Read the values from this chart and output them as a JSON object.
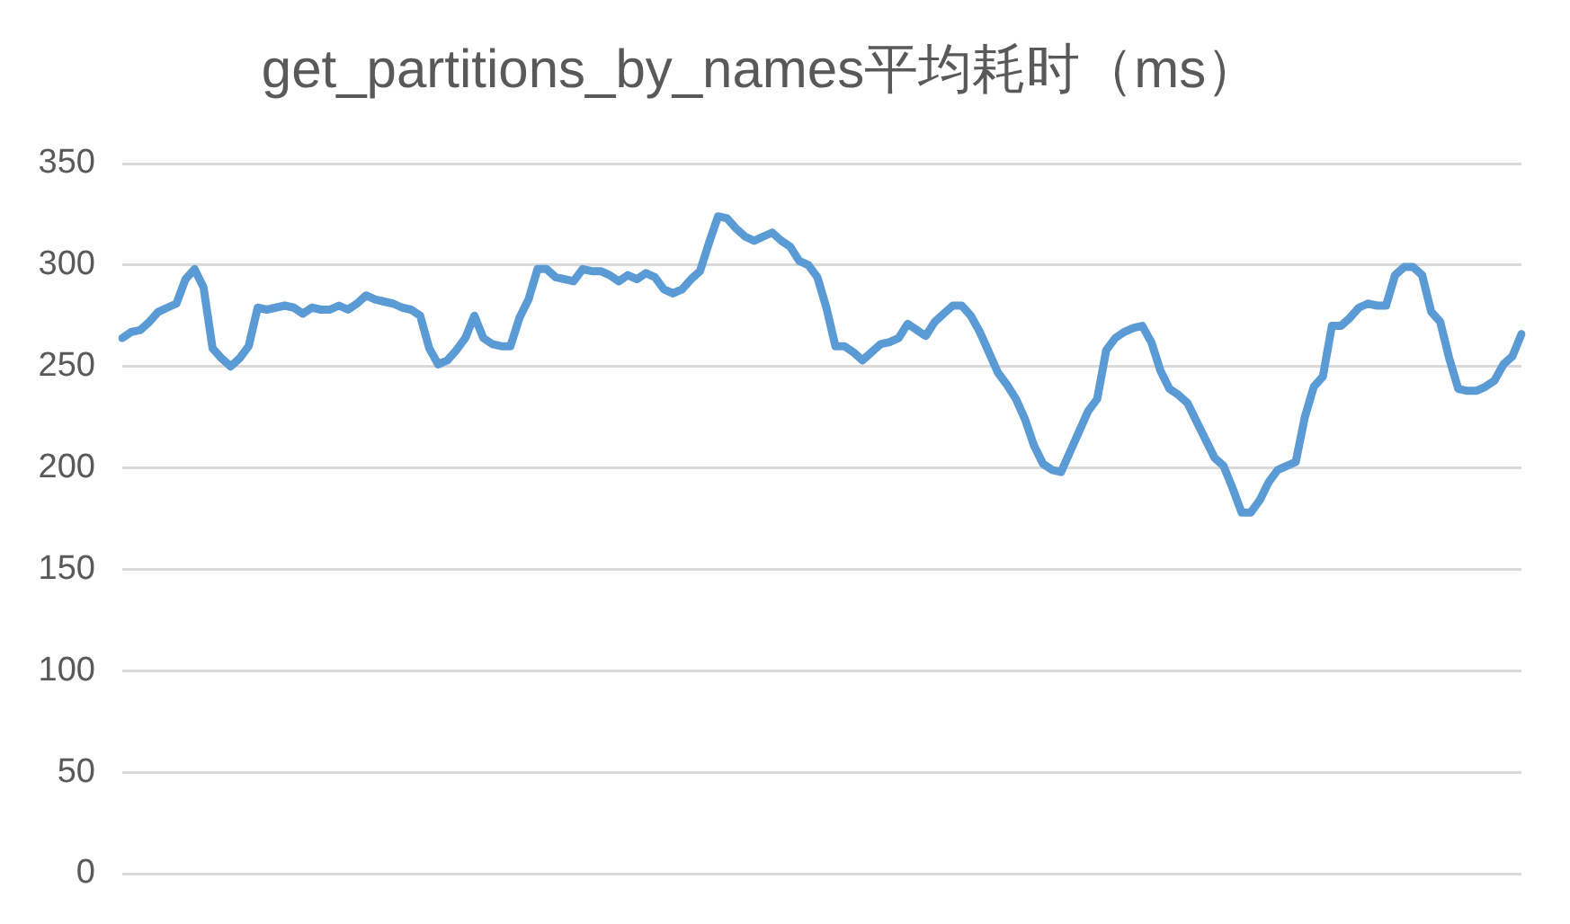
{
  "chart_data": {
    "type": "line",
    "title": "get_partitions_by_names平均耗时（ms）",
    "categories": [
      null,
      null,
      null,
      null,
      null,
      null,
      null,
      null,
      null,
      null,
      null,
      null,
      null,
      null,
      null,
      null,
      null,
      null,
      null,
      null,
      null,
      null,
      null,
      null,
      null,
      null,
      null,
      null,
      null,
      null,
      null,
      null,
      null,
      null,
      null,
      null,
      null,
      null,
      null,
      null,
      null,
      null,
      null,
      null,
      null,
      null,
      null,
      null,
      null,
      null,
      null,
      null,
      null,
      null,
      null,
      null,
      null,
      null,
      null,
      null,
      null,
      null,
      null,
      null,
      null,
      null,
      null,
      null,
      null,
      null,
      null,
      null,
      null,
      null,
      null,
      null,
      null,
      null,
      null,
      null,
      null,
      null,
      null,
      null,
      null,
      null,
      null,
      null,
      null,
      null,
      null,
      null,
      null,
      null,
      null,
      null,
      null,
      null,
      null,
      null,
      null,
      null,
      null,
      null,
      null,
      null,
      null,
      null,
      null,
      null,
      null,
      null,
      null,
      null,
      null,
      null,
      null,
      null,
      null,
      null,
      null,
      null,
      null,
      null,
      null,
      null,
      null,
      null,
      null,
      null,
      null,
      null,
      null,
      null,
      null,
      null,
      null,
      null,
      null,
      null,
      null,
      null,
      null,
      null,
      null,
      null,
      null,
      null,
      null,
      null,
      null,
      null,
      null,
      null,
      null,
      null
    ],
    "series": [
      {
        "color": "#5b9bd5",
        "values": [
          264,
          267,
          268,
          272,
          277,
          279,
          281,
          293,
          298,
          289,
          259,
          254,
          250,
          254,
          260,
          279,
          278,
          279,
          280,
          279,
          276,
          279,
          278,
          278,
          280,
          278,
          281,
          285,
          283,
          282,
          281,
          279,
          278,
          275,
          259,
          251,
          253,
          258,
          264,
          275,
          264,
          261,
          260,
          260,
          274,
          283,
          298,
          298,
          294,
          293,
          292,
          298,
          297,
          297,
          295,
          292,
          295,
          293,
          296,
          294,
          288,
          286,
          288,
          293,
          297,
          311,
          324,
          323,
          318,
          314,
          312,
          314,
          316,
          312,
          309,
          302,
          300,
          294,
          279,
          260,
          260,
          257,
          253,
          257,
          261,
          262,
          264,
          271,
          268,
          265,
          272,
          276,
          280,
          280,
          275,
          267,
          257,
          247,
          241,
          234,
          224,
          211,
          202,
          199,
          198,
          208,
          218,
          228,
          234,
          258,
          264,
          267,
          269,
          270,
          262,
          248,
          239,
          236,
          232,
          223,
          214,
          205,
          201,
          190,
          178,
          178,
          184,
          193,
          199,
          201,
          203,
          225,
          240,
          245,
          270,
          270,
          274,
          279,
          281,
          280,
          280,
          295,
          299,
          299,
          295,
          277,
          272,
          254,
          239,
          238,
          238,
          240,
          243,
          251,
          255,
          266
        ]
      }
    ],
    "ylim": [
      0,
      350
    ],
    "yticks": [
      0,
      50,
      100,
      150,
      200,
      250,
      300,
      350
    ],
    "grid": "y",
    "marker": "none",
    "line_style": "solid"
  }
}
